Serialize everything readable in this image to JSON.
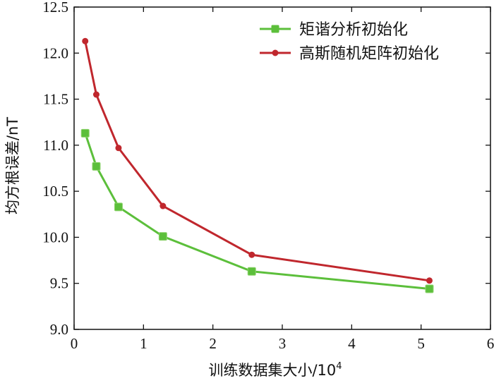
{
  "chart_data": {
    "type": "line",
    "xlabel": "训练数据集大小/10",
    "xlabel_superscript": "4",
    "ylabel": "均方根误差/nT",
    "xlim": [
      0,
      6
    ],
    "ylim": [
      9.0,
      12.5
    ],
    "x_ticks": [
      "0",
      "1",
      "2",
      "3",
      "4",
      "5",
      "6"
    ],
    "y_ticks": [
      "9.0",
      "9.5",
      "10.0",
      "10.5",
      "11.0",
      "11.5",
      "12.0",
      "12.5"
    ],
    "x_tick_values": [
      0,
      1,
      2,
      3,
      4,
      5,
      6
    ],
    "y_tick_values": [
      9.0,
      9.5,
      10.0,
      10.5,
      11.0,
      11.5,
      12.0,
      12.5
    ],
    "grid": false,
    "legend_position": "top-right",
    "series": [
      {
        "name": "矩谐分析初始化",
        "color": "#5cbf3b",
        "marker": "square",
        "x": [
          0.16,
          0.32,
          0.64,
          1.28,
          2.56,
          5.12
        ],
        "y": [
          11.13,
          10.77,
          10.33,
          10.01,
          9.63,
          9.44
        ]
      },
      {
        "name": "高斯随机矩阵初始化",
        "color": "#c0272d",
        "marker": "circle",
        "x": [
          0.16,
          0.32,
          0.64,
          1.28,
          2.56,
          5.12
        ],
        "y": [
          12.13,
          11.55,
          10.97,
          10.34,
          9.81,
          9.53
        ]
      }
    ]
  }
}
